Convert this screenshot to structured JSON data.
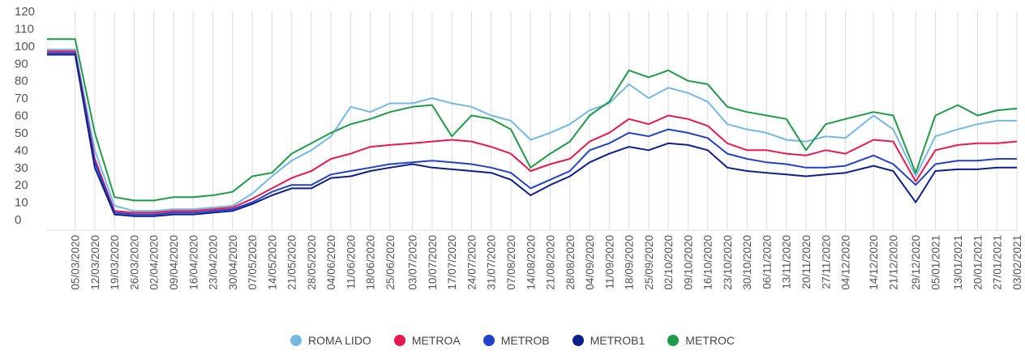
{
  "chart_data": {
    "type": "line",
    "title": "",
    "xlabel": "",
    "ylabel": "",
    "ylim": [
      0,
      120
    ],
    "yticks": [
      0,
      10,
      20,
      30,
      40,
      50,
      60,
      70,
      80,
      90,
      100,
      110,
      120
    ],
    "grid": "vertical",
    "legend_position": "bottom",
    "x_range": [
      "2020-02-24",
      "2021-02-03"
    ],
    "x": [
      "05/03/2020",
      "12/03/2020",
      "19/03/2020",
      "26/03/2020",
      "02/04/2020",
      "09/04/2020",
      "16/04/2020",
      "23/04/2020",
      "30/04/2020",
      "07/05/2020",
      "14/05/2020",
      "21/05/2020",
      "28/05/2020",
      "04/06/2020",
      "11/06/2020",
      "18/06/2020",
      "25/06/2020",
      "03/07/2020",
      "10/07/2020",
      "17/07/2020",
      "24/07/2020",
      "31/07/2020",
      "07/08/2020",
      "14/08/2020",
      "21/08/2020",
      "28/08/2020",
      "04/09/2020",
      "11/09/2020",
      "18/09/2020",
      "25/09/2020",
      "02/10/2020",
      "09/10/2020",
      "16/10/2020",
      "23/10/2020",
      "30/10/2020",
      "06/11/2020",
      "13/11/2020",
      "20/11/2020",
      "27/11/2020",
      "04/12/2020",
      "14/12/2020",
      "21/12/2020",
      "29/12/2020",
      "05/01/2021",
      "13/01/2021",
      "20/01/2021",
      "27/01/2021",
      "03/02/2021"
    ],
    "series": [
      {
        "name": "ROMA LIDO",
        "color": "#74b9e3",
        "values": [
          98,
          40,
          8,
          5,
          5,
          6,
          6,
          7,
          8,
          15,
          25,
          34,
          40,
          48,
          65,
          62,
          67,
          67,
          70,
          67,
          65,
          60,
          57,
          46,
          50,
          55,
          63,
          67,
          78,
          70,
          76,
          73,
          68,
          55,
          52,
          50,
          46,
          45,
          48,
          47,
          60,
          52,
          25,
          48,
          52,
          55,
          57,
          57
        ]
      },
      {
        "name": "METROA",
        "color": "#e8194f",
        "values": [
          97,
          35,
          5,
          4,
          4,
          5,
          5,
          6,
          7,
          12,
          18,
          24,
          28,
          35,
          38,
          42,
          43,
          44,
          45,
          46,
          45,
          42,
          38,
          28,
          32,
          35,
          45,
          50,
          58,
          55,
          60,
          58,
          54,
          44,
          40,
          40,
          38,
          37,
          40,
          38,
          46,
          45,
          22,
          40,
          43,
          44,
          44,
          45
        ]
      },
      {
        "name": "METROB",
        "color": "#2141c9",
        "values": [
          96,
          33,
          4,
          3,
          3,
          4,
          4,
          5,
          6,
          10,
          16,
          20,
          20,
          26,
          28,
          30,
          32,
          33,
          34,
          33,
          32,
          30,
          27,
          18,
          23,
          28,
          40,
          44,
          50,
          48,
          52,
          50,
          47,
          38,
          35,
          33,
          32,
          30,
          30,
          31,
          37,
          32,
          20,
          32,
          34,
          34,
          35,
          35
        ]
      },
      {
        "name": "METROB1",
        "color": "#0d1f8a",
        "values": [
          95,
          30,
          3,
          2,
          2,
          3,
          3,
          4,
          5,
          9,
          14,
          18,
          18,
          24,
          25,
          28,
          30,
          32,
          30,
          29,
          28,
          27,
          23,
          14,
          20,
          25,
          33,
          38,
          42,
          40,
          44,
          43,
          40,
          30,
          28,
          27,
          26,
          25,
          26,
          27,
          31,
          28,
          10,
          28,
          29,
          29,
          30,
          30
        ]
      },
      {
        "name": "METROC",
        "color": "#1f9a48",
        "values": [
          104,
          50,
          13,
          11,
          11,
          13,
          13,
          14,
          16,
          25,
          27,
          38,
          44,
          50,
          55,
          58,
          62,
          65,
          66,
          48,
          60,
          58,
          52,
          30,
          38,
          45,
          60,
          68,
          86,
          82,
          86,
          80,
          78,
          65,
          62,
          60,
          58,
          40,
          55,
          58,
          62,
          60,
          27,
          60,
          66,
          60,
          63,
          64
        ]
      }
    ]
  }
}
